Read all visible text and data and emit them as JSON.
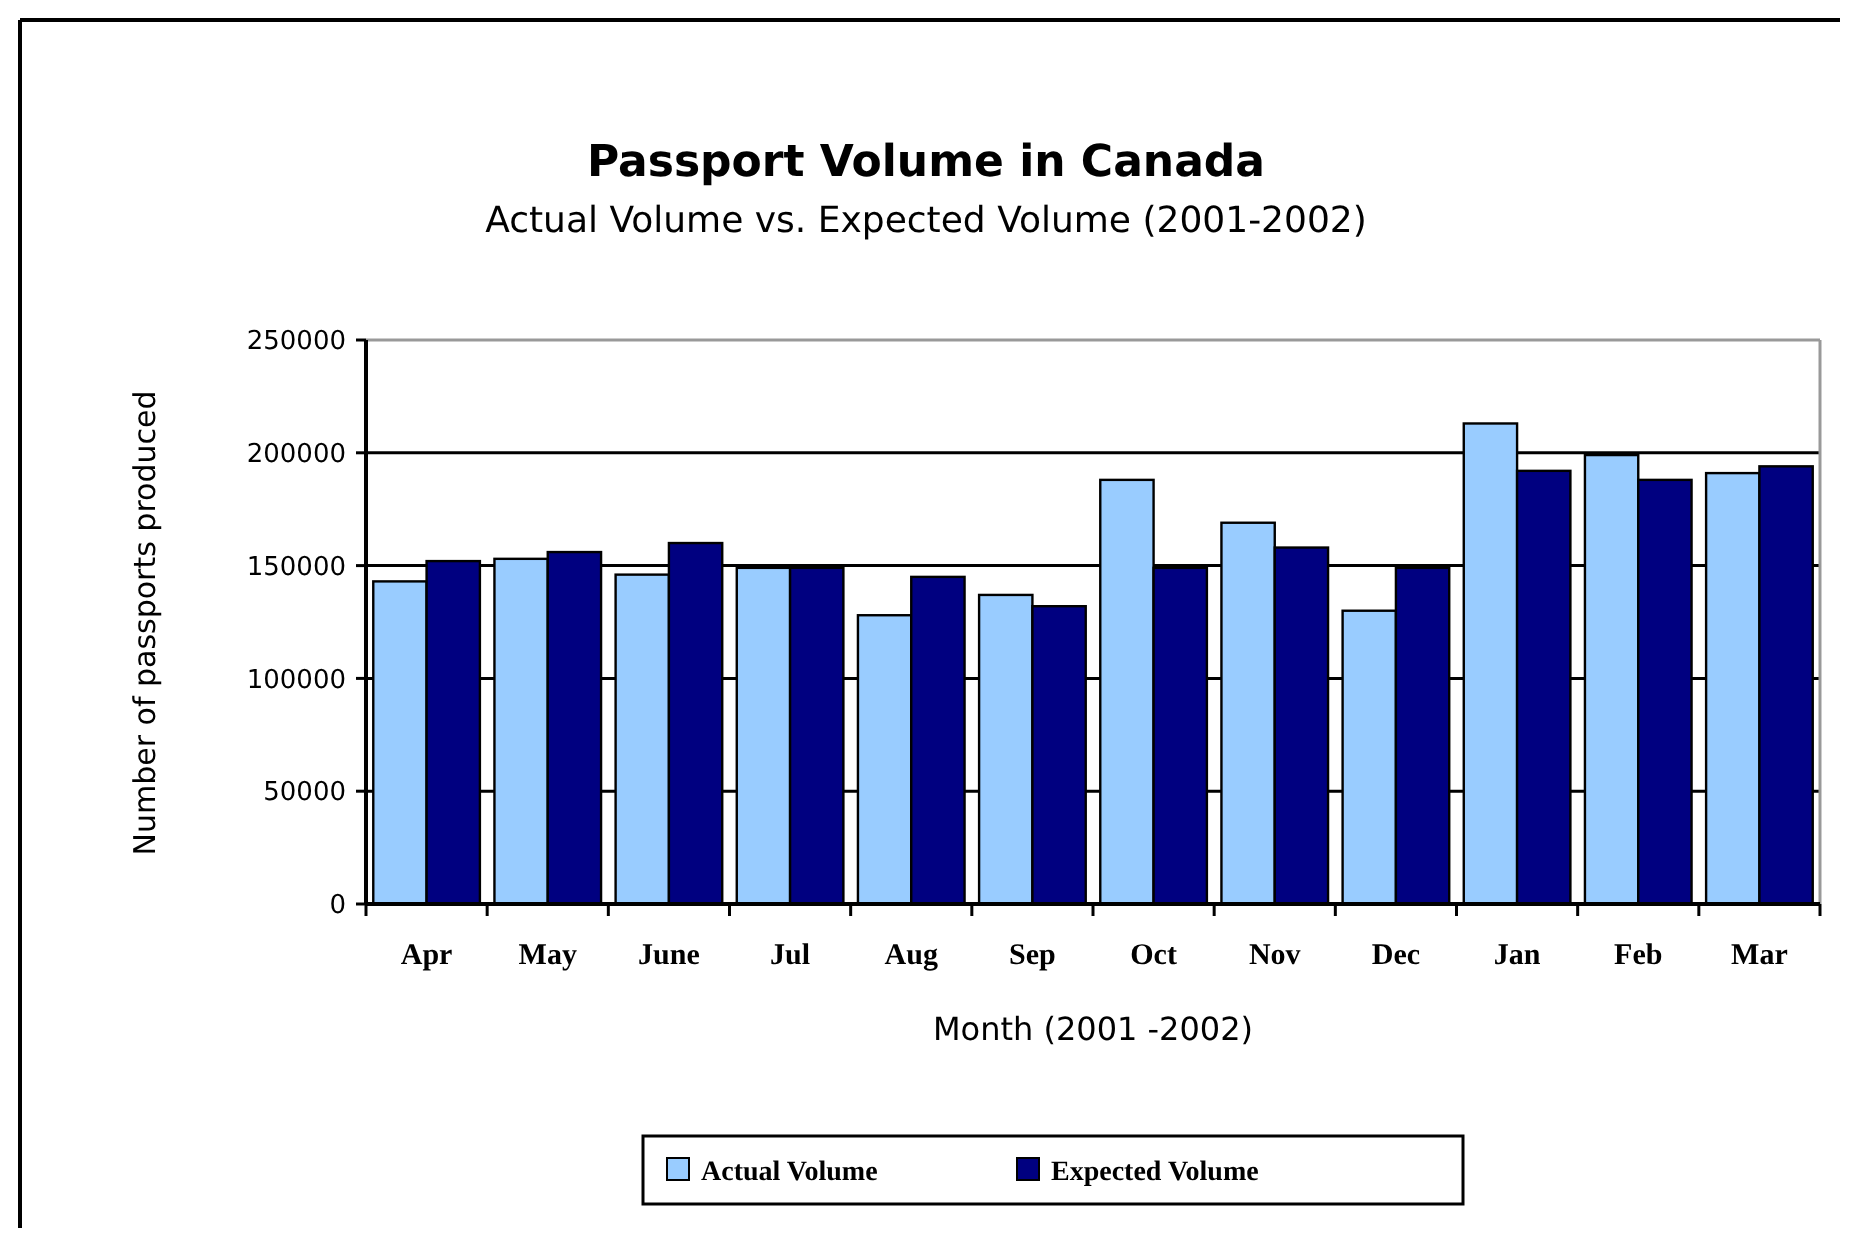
{
  "chart_data": {
    "type": "bar",
    "title": "Passport Volume in Canada",
    "subtitle": "Actual Volume vs. Expected Volume (2001-2002)",
    "xlabel": "Month (2001 -2002)",
    "ylabel": "Number of passports produced",
    "categories": [
      "Apr",
      "May",
      "June",
      "Jul",
      "Aug",
      "Sep",
      "Oct",
      "Nov",
      "Dec",
      "Jan",
      "Feb",
      "Mar"
    ],
    "series": [
      {
        "name": "Actual Volume",
        "color": "#99ccff",
        "values": [
          143000,
          153000,
          146000,
          149000,
          128000,
          137000,
          188000,
          169000,
          130000,
          213000,
          199000,
          191000
        ]
      },
      {
        "name": "Expected Volume",
        "color": "#000080",
        "values": [
          152000,
          156000,
          160000,
          149000,
          145000,
          132000,
          149000,
          158000,
          149000,
          192000,
          188000,
          194000
        ]
      }
    ],
    "ylim": [
      0,
      250000
    ],
    "yticks": [
      0,
      50000,
      100000,
      150000,
      200000,
      250000
    ],
    "grid": "y",
    "legend": "bottom"
  }
}
